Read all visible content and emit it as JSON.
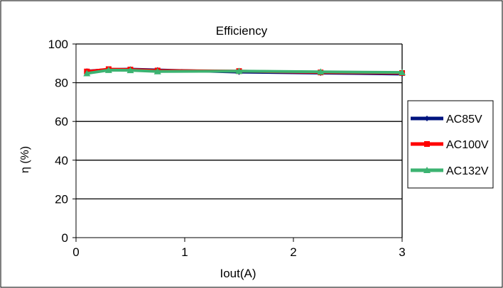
{
  "chart_data": {
    "type": "line",
    "title": "Efficiency",
    "xlabel": "Iout(A)",
    "ylabel": "η (%)",
    "xlim": [
      0,
      3
    ],
    "ylim": [
      0,
      100
    ],
    "x_ticks": [
      0,
      1,
      2,
      3
    ],
    "y_ticks": [
      0,
      20,
      40,
      60,
      80,
      100
    ],
    "x_tick_labels": [
      "0",
      "1",
      "2",
      "3"
    ],
    "y_tick_labels": [
      "0",
      "20",
      "40",
      "60",
      "80",
      "100"
    ],
    "grid": "horizontal",
    "legend_position": "right",
    "series": [
      {
        "name": "AC85V",
        "color": "#00147f",
        "marker": "diamond",
        "x": [
          0.1,
          0.3,
          0.5,
          0.75,
          1.5,
          2.25,
          3.0
        ],
        "y": [
          86.0,
          86.8,
          87.0,
          86.6,
          85.5,
          85.0,
          84.5
        ]
      },
      {
        "name": "AC100V",
        "color": "#ff0000",
        "marker": "square",
        "x": [
          0.1,
          0.3,
          0.5,
          0.75,
          1.5,
          2.25,
          3.0
        ],
        "y": [
          85.8,
          87.0,
          86.8,
          86.3,
          86.0,
          85.3,
          85.0
        ]
      },
      {
        "name": "AC132V",
        "color": "#3cb371",
        "marker": "triangle",
        "x": [
          0.1,
          0.3,
          0.5,
          0.75,
          1.5,
          2.25,
          3.0
        ],
        "y": [
          84.8,
          86.5,
          86.4,
          85.8,
          86.0,
          85.6,
          85.3
        ]
      }
    ]
  }
}
